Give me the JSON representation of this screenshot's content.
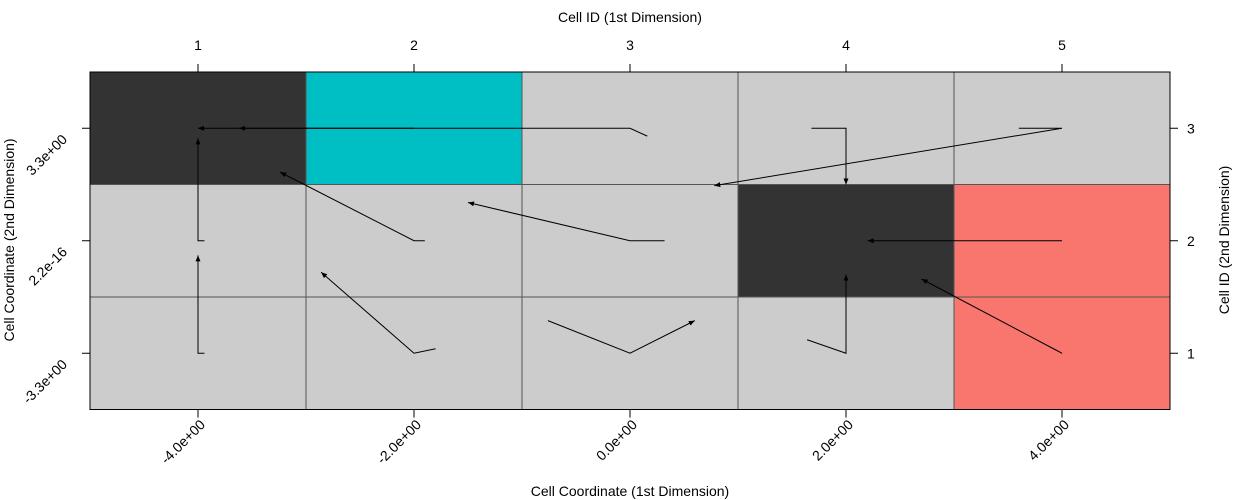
{
  "chart_data": {
    "type": "heatmap",
    "title": "",
    "xlabel_bottom": "Cell Coordinate (1st Dimension)",
    "xlabel_top": "Cell ID (1st Dimension)",
    "ylabel_left": "Cell Coordinate (2nd Dimension)",
    "ylabel_right": "Cell ID (2nd Dimension)",
    "x_ids": [
      "1",
      "2",
      "3",
      "4",
      "5"
    ],
    "y_ids": [
      "1",
      "2",
      "3"
    ],
    "x_coord_ticks": [
      "-4.0e+00",
      "-2.0e+00",
      "0.0e+00",
      "2.0e+00",
      "4.0e+00"
    ],
    "y_coord_ticks": [
      "-3.3e+00",
      "2.2e-16",
      "3.3e+00"
    ],
    "colors": {
      "default": "#cccccc",
      "dark": "#333333",
      "cyan": "#00bfc4",
      "salmon": "#f8766d",
      "line": "#000000",
      "gridline": "#555555"
    },
    "cells": [
      {
        "col": 1,
        "row": 3,
        "color": "dark"
      },
      {
        "col": 2,
        "row": 3,
        "color": "cyan"
      },
      {
        "col": 3,
        "row": 3,
        "color": "default"
      },
      {
        "col": 4,
        "row": 3,
        "color": "default"
      },
      {
        "col": 5,
        "row": 3,
        "color": "default"
      },
      {
        "col": 1,
        "row": 2,
        "color": "default"
      },
      {
        "col": 2,
        "row": 2,
        "color": "default"
      },
      {
        "col": 3,
        "row": 2,
        "color": "default"
      },
      {
        "col": 4,
        "row": 2,
        "color": "dark"
      },
      {
        "col": 5,
        "row": 2,
        "color": "salmon"
      },
      {
        "col": 1,
        "row": 1,
        "color": "default"
      },
      {
        "col": 2,
        "row": 1,
        "color": "default"
      },
      {
        "col": 3,
        "row": 1,
        "color": "default"
      },
      {
        "col": 4,
        "row": 1,
        "color": "default"
      },
      {
        "col": 5,
        "row": 1,
        "color": "salmon"
      }
    ],
    "arrows": [
      {
        "points": [
          [
            2,
            3
          ],
          [
            1,
            3
          ]
        ]
      },
      {
        "points": [
          [
            3.08,
            2.93
          ],
          [
            3,
            3
          ],
          [
            1.19,
            3
          ]
        ]
      },
      {
        "points": [
          [
            3.84,
            3
          ],
          [
            4,
            3
          ],
          [
            4,
            2.5
          ]
        ]
      },
      {
        "points": [
          [
            4.8,
            3
          ],
          [
            5,
            3
          ],
          [
            3.39,
            2.49
          ]
        ]
      },
      {
        "points": [
          [
            1.03,
            2
          ],
          [
            1,
            2
          ],
          [
            1,
            2.91
          ]
        ]
      },
      {
        "points": [
          [
            2.05,
            2
          ],
          [
            2,
            2
          ],
          [
            1.38,
            2.61
          ]
        ]
      },
      {
        "points": [
          [
            3.16,
            2
          ],
          [
            3,
            2
          ],
          [
            2.25,
            2.34
          ]
        ]
      },
      {
        "points": [
          [
            5,
            2
          ],
          [
            4.1,
            2
          ]
        ]
      },
      {
        "points": [
          [
            1.03,
            1
          ],
          [
            1,
            1
          ],
          [
            1,
            1.87
          ]
        ]
      },
      {
        "points": [
          [
            2.1,
            1.04
          ],
          [
            2,
            1
          ],
          [
            1.57,
            1.72
          ]
        ]
      },
      {
        "points": [
          [
            2.62,
            1.29
          ],
          [
            3,
            1
          ],
          [
            3.3,
            1.29
          ]
        ]
      },
      {
        "points": [
          [
            3.82,
            1.12
          ],
          [
            4,
            1
          ],
          [
            4,
            1.7
          ]
        ]
      },
      {
        "points": [
          [
            5,
            1
          ],
          [
            4.35,
            1.66
          ]
        ]
      }
    ]
  }
}
